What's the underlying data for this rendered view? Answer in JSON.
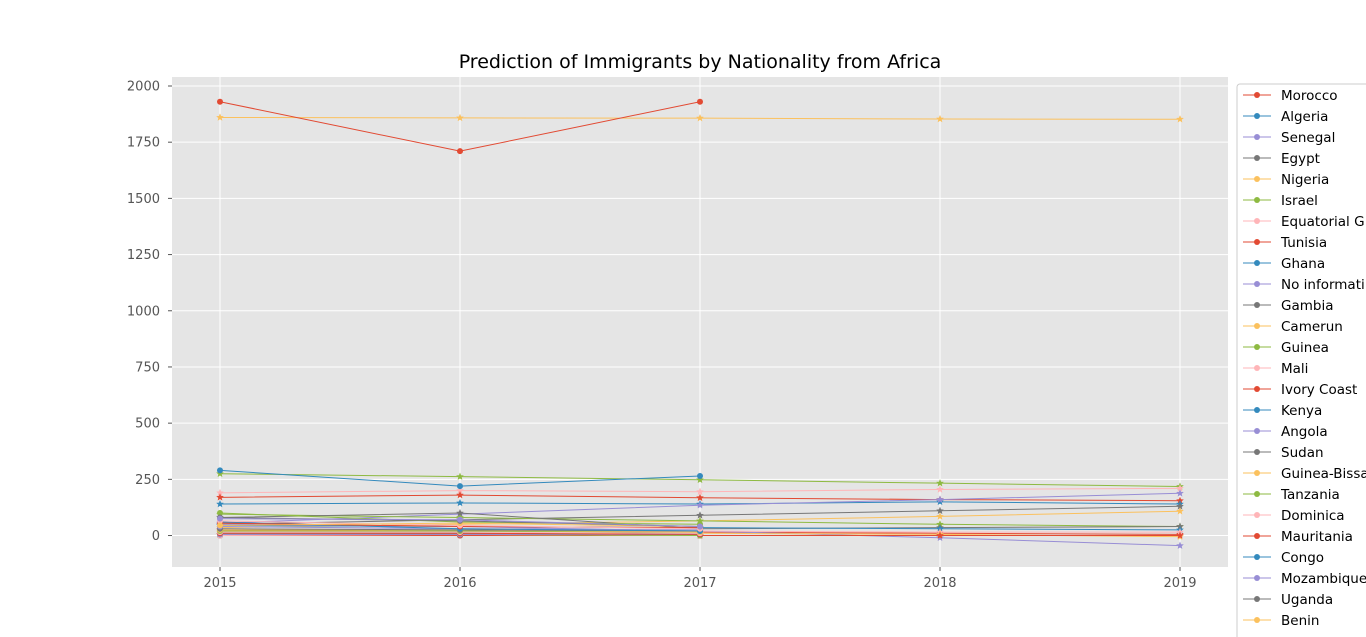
{
  "chart_data": {
    "type": "line",
    "title": "Prediction of Immigrants by Nationality from Africa",
    "xlabel": "",
    "ylabel": "",
    "x": [
      2015,
      2016,
      2017,
      2018,
      2019
    ],
    "x_tick_labels": [
      "2015",
      "2016",
      "2017",
      "2018",
      "2019"
    ],
    "y_ticks": [
      0,
      250,
      500,
      750,
      1000,
      1250,
      1500,
      1750,
      2000
    ],
    "y_tick_labels": [
      "0",
      "250",
      "500",
      "750",
      "1000",
      "1250",
      "1500",
      "1750",
      "2000"
    ],
    "xlim": [
      2014.8,
      2019.2
    ],
    "ylim": [
      -140,
      2040
    ],
    "grid": true,
    "background_color": "#e5e5e5",
    "legend_position": "right, outside plot",
    "series": [
      {
        "name": "Morocco",
        "color": "#e24a33",
        "values": [
          1930,
          1710,
          1930,
          null,
          null
        ]
      },
      {
        "name": "Algeria",
        "color": "#348abd",
        "values": [
          290,
          220,
          265,
          null,
          null
        ]
      },
      {
        "name": "Senegal",
        "color": "#988ed5",
        "values": [
          75,
          70,
          40,
          null,
          null
        ]
      },
      {
        "name": "Egypt",
        "color": "#777777",
        "values": [
          80,
          65,
          40,
          null,
          null
        ]
      },
      {
        "name": "Nigeria",
        "color": "#fbc15e",
        "values": [
          45,
          55,
          40,
          null,
          null
        ]
      },
      {
        "name": "Israel",
        "color": "#8eba42",
        "values": [
          100,
          60,
          50,
          null,
          null
        ]
      },
      {
        "name": "Equatorial G",
        "color": "#ffb5b8",
        "values": [
          65,
          45,
          30,
          null,
          null
        ]
      },
      {
        "name": "Tunisia",
        "color": "#e24a33",
        "values": [
          55,
          40,
          35,
          null,
          null
        ]
      },
      {
        "name": "Ghana",
        "color": "#348abd",
        "values": [
          60,
          30,
          20,
          null,
          null
        ]
      },
      {
        "name": "No informati",
        "color": "#988ed5",
        "values": [
          40,
          30,
          25,
          null,
          null
        ]
      },
      {
        "name": "Gambia",
        "color": "#777777",
        "values": [
          30,
          25,
          20,
          null,
          null
        ]
      },
      {
        "name": "Camerun",
        "color": "#fbc15e",
        "values": [
          25,
          25,
          15,
          null,
          null
        ]
      },
      {
        "name": "Guinea",
        "color": "#8eba42",
        "values": [
          20,
          20,
          15,
          null,
          null
        ]
      },
      {
        "name": "Mali",
        "color": "#ffb5b8",
        "values": [
          15,
          15,
          10,
          null,
          null
        ]
      },
      {
        "name": "Ivory Coast",
        "color": "#e24a33",
        "values": [
          10,
          10,
          5,
          null,
          null
        ]
      },
      {
        "name": "Kenya",
        "color": "#348abd",
        "values": [
          10,
          10,
          5,
          null,
          null
        ]
      },
      {
        "name": "Angola",
        "color": "#988ed5",
        "values": [
          5,
          5,
          5,
          null,
          null
        ]
      },
      {
        "name": "Sudan",
        "color": "#777777",
        "values": [
          5,
          5,
          5,
          null,
          null
        ]
      },
      {
        "name": "Guinea-Bissa",
        "color": "#fbc15e",
        "values": [
          5,
          5,
          5,
          null,
          null
        ]
      },
      {
        "name": "Tanzania",
        "color": "#8eba42",
        "values": [
          5,
          5,
          0,
          null,
          null
        ]
      },
      {
        "name": "Dominica",
        "color": "#ffb5b8",
        "values": [
          0,
          5,
          0,
          null,
          null
        ]
      },
      {
        "name": "Mauritania",
        "color": "#e24a33",
        "values": [
          0,
          0,
          0,
          null,
          null
        ]
      },
      {
        "name": "Congo",
        "color": "#348abd",
        "values": [
          0,
          0,
          0,
          null,
          null
        ]
      },
      {
        "name": "Mozambique",
        "color": "#988ed5",
        "values": [
          0,
          0,
          0,
          null,
          null
        ]
      },
      {
        "name": "Uganda",
        "color": "#777777",
        "values": [
          0,
          0,
          0,
          null,
          null
        ]
      },
      {
        "name": "Benin",
        "color": "#fbc15e",
        "values": [
          0,
          0,
          0,
          null,
          null
        ]
      }
    ],
    "prediction_series": [
      {
        "color": "#fbc15e",
        "values": [
          1860,
          1858,
          1857,
          1853,
          1852
        ]
      },
      {
        "color": "#8eba42",
        "values": [
          275,
          262,
          248,
          233,
          218
        ]
      },
      {
        "color": "#ffb5b8",
        "values": [
          190,
          200,
          195,
          205,
          210
        ]
      },
      {
        "color": "#e24a33",
        "values": [
          170,
          180,
          168,
          160,
          155
        ]
      },
      {
        "color": "#348abd",
        "values": [
          140,
          145,
          140,
          150,
          140
        ]
      },
      {
        "color": "#988ed5",
        "values": [
          55,
          95,
          135,
          160,
          188
        ]
      },
      {
        "color": "#777777",
        "values": [
          50,
          70,
          90,
          110,
          130
        ]
      },
      {
        "color": "#fbc15e",
        "values": [
          35,
          50,
          65,
          85,
          108
        ]
      },
      {
        "color": "#8eba42",
        "values": [
          95,
          80,
          65,
          50,
          40
        ]
      },
      {
        "color": "#777777",
        "values": [
          80,
          100,
          30,
          35,
          40
        ]
      },
      {
        "color": "#348abd",
        "values": [
          45,
          40,
          35,
          30,
          25
        ]
      },
      {
        "color": "#e24a33",
        "values": [
          25,
          20,
          15,
          10,
          5
        ]
      },
      {
        "color": "#988ed5",
        "values": [
          50,
          40,
          20,
          -10,
          -45
        ]
      },
      {
        "color": "#ffb5b8",
        "values": [
          20,
          15,
          20,
          15,
          15
        ]
      },
      {
        "color": "#fbc15e",
        "values": [
          15,
          10,
          10,
          5,
          -5
        ]
      },
      {
        "color": "#e24a33",
        "values": [
          5,
          5,
          0,
          0,
          0
        ]
      }
    ]
  }
}
